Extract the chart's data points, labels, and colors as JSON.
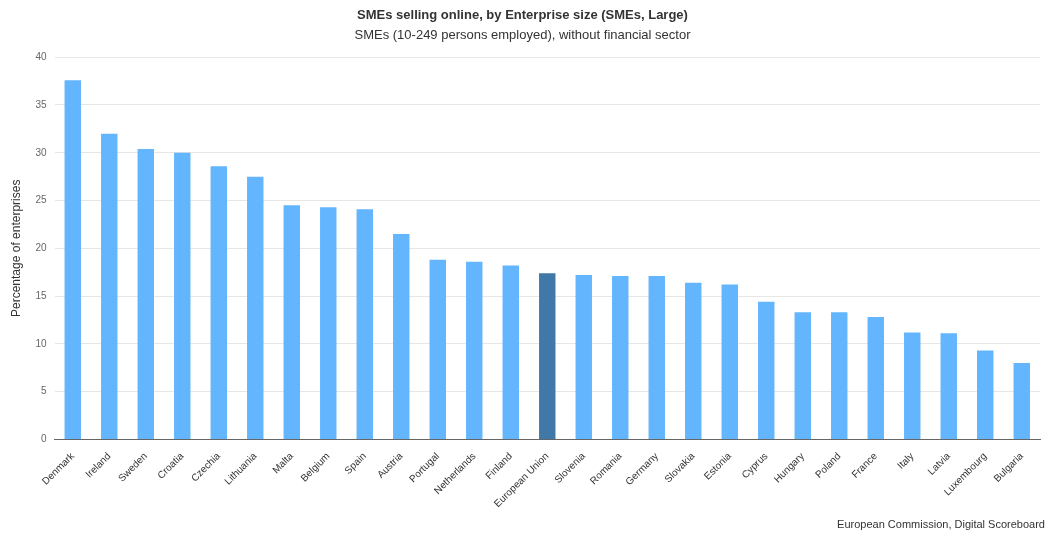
{
  "chart_data": {
    "type": "bar",
    "title": "SMEs selling online, by Enterprise size (SMEs, Large)",
    "subtitle": "SMEs (10-249 persons employed), without financial sector",
    "ylabel": "Percentage of enterprises",
    "categories": [
      "Denmark",
      "Ireland",
      "Sweden",
      "Croatia",
      "Czechia",
      "Lithuania",
      "Malta",
      "Belgium",
      "Spain",
      "Austria",
      "Portugal",
      "Netherlands",
      "Finland",
      "European Union",
      "Slovenia",
      "Romania",
      "Germany",
      "Slovakia",
      "Estonia",
      "Cyprus",
      "Hungary",
      "Poland",
      "France",
      "Italy",
      "Latvia",
      "Luxembourg",
      "Bulgaria"
    ],
    "values": [
      37.6,
      32.0,
      30.4,
      30.0,
      28.6,
      27.5,
      24.5,
      24.3,
      24.1,
      21.5,
      18.8,
      18.6,
      18.2,
      17.4,
      17.2,
      17.1,
      17.1,
      16.4,
      16.2,
      14.4,
      13.3,
      13.3,
      12.8,
      11.2,
      11.1,
      9.3,
      8.0
    ],
    "colors": [
      "#63b5fd",
      "#63b5fd",
      "#63b5fd",
      "#63b5fd",
      "#63b5fd",
      "#63b5fd",
      "#63b5fd",
      "#63b5fd",
      "#63b5fd",
      "#63b5fd",
      "#63b5fd",
      "#63b5fd",
      "#63b5fd",
      "#4079a8",
      "#63b5fd",
      "#63b5fd",
      "#63b5fd",
      "#63b5fd",
      "#63b5fd",
      "#63b5fd",
      "#63b5fd",
      "#63b5fd",
      "#63b5fd",
      "#63b5fd",
      "#63b5fd",
      "#63b5fd",
      "#63b5fd"
    ],
    "ylim": [
      0,
      40
    ],
    "yticks": [
      0,
      5,
      10,
      15,
      20,
      25,
      30,
      35,
      40
    ],
    "grid": "y",
    "legend": false,
    "annotations": [
      "European Commission, Digital Scoreboard"
    ]
  }
}
